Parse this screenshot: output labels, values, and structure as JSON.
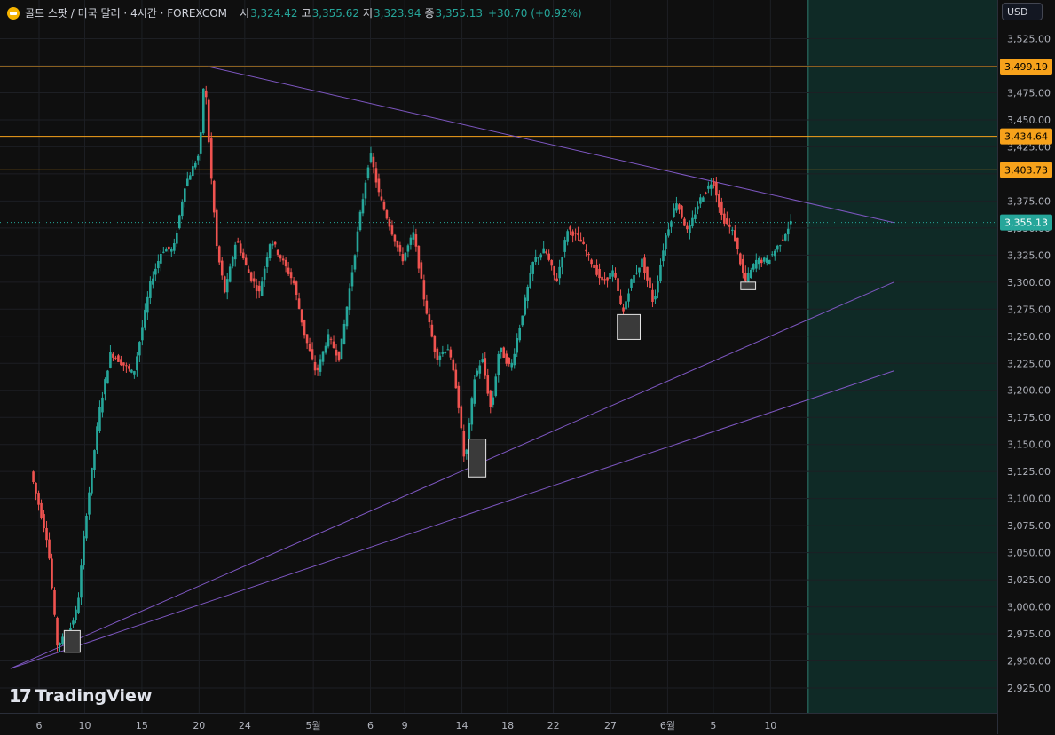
{
  "header": {
    "symbol": "골드 스팟 / 미국 달러 · 4시간 · FOREXCOM",
    "open_label": "시",
    "open": "3,324.42",
    "high_label": "고",
    "high": "3,355.62",
    "low_label": "저",
    "low": "3,323.94",
    "close_label": "종",
    "close": "3,355.13",
    "change": "+30.70 (+0.92%)",
    "currency": "USD"
  },
  "branding": {
    "name": "TradingView"
  },
  "colors": {
    "up": "#26a69a",
    "down": "#ef5350",
    "level": "#f7a21b",
    "trend": "#7e57c2",
    "future_zone": "#0f2a26",
    "current_price": "#26a69a"
  },
  "chart_data": {
    "type": "candlestick",
    "timeframe": "4h",
    "ylim": [
      2910,
      3545
    ],
    "y_ticks": [
      2925,
      2950,
      2975,
      3000,
      3025,
      3050,
      3075,
      3100,
      3125,
      3150,
      3175,
      3200,
      3225,
      3250,
      3275,
      3300,
      3325,
      3350,
      3375,
      3400,
      3425,
      3450,
      3475,
      3500,
      3525
    ],
    "y_tick_labels": [
      "2,925.00",
      "2,950.00",
      "2,975.00",
      "3,000.00",
      "3,025.00",
      "3,050.00",
      "3,075.00",
      "3,100.00",
      "3,125.00",
      "3,150.00",
      "3,175.00",
      "3,200.00",
      "3,225.00",
      "3,250.00",
      "3,275.00",
      "3,300.00",
      "3,325.00",
      "3,350.00",
      "3,375.00",
      "3,400.00",
      "3,425.00",
      "3,450.00",
      "3,475.00",
      "3,500.00",
      "3,525.00"
    ],
    "x_ticks": [
      {
        "label": "6",
        "day": 0
      },
      {
        "label": "10",
        "day": 4
      },
      {
        "label": "15",
        "day": 9
      },
      {
        "label": "20",
        "day": 14
      },
      {
        "label": "24",
        "day": 18
      },
      {
        "label": "5월",
        "day": 24
      },
      {
        "label": "6",
        "day": 29
      },
      {
        "label": "9",
        "day": 32
      },
      {
        "label": "14",
        "day": 37
      },
      {
        "label": "18",
        "day": 41
      },
      {
        "label": "22",
        "day": 45
      },
      {
        "label": "27",
        "day": 50
      },
      {
        "label": "6월",
        "day": 55
      },
      {
        "label": "5",
        "day": 59
      },
      {
        "label": "10",
        "day": 64
      }
    ],
    "price_path": [
      {
        "day": -0.5,
        "p": 3125
      },
      {
        "day": 1,
        "p": 3060
      },
      {
        "day": 1.8,
        "p": 2965
      },
      {
        "day": 2.8,
        "p": 2975
      },
      {
        "day": 3.6,
        "p": 3000
      },
      {
        "day": 4.3,
        "p": 3080
      },
      {
        "day": 5.5,
        "p": 3180
      },
      {
        "day": 6.5,
        "p": 3235
      },
      {
        "day": 7.5,
        "p": 3225
      },
      {
        "day": 8.5,
        "p": 3215
      },
      {
        "day": 10,
        "p": 3300
      },
      {
        "day": 11,
        "p": 3330
      },
      {
        "day": 12,
        "p": 3330
      },
      {
        "day": 13,
        "p": 3390
      },
      {
        "day": 14.3,
        "p": 3420
      },
      {
        "day": 14.7,
        "p": 3495
      },
      {
        "day": 15.2,
        "p": 3410
      },
      {
        "day": 15.8,
        "p": 3330
      },
      {
        "day": 16.5,
        "p": 3290
      },
      {
        "day": 17.5,
        "p": 3340
      },
      {
        "day": 18.5,
        "p": 3310
      },
      {
        "day": 19.5,
        "p": 3290
      },
      {
        "day": 20.5,
        "p": 3340
      },
      {
        "day": 21.5,
        "p": 3320
      },
      {
        "day": 22.5,
        "p": 3300
      },
      {
        "day": 23.5,
        "p": 3250
      },
      {
        "day": 24.5,
        "p": 3215
      },
      {
        "day": 25.5,
        "p": 3250
      },
      {
        "day": 26.5,
        "p": 3230
      },
      {
        "day": 27.5,
        "p": 3300
      },
      {
        "day": 28.3,
        "p": 3360
      },
      {
        "day": 29.2,
        "p": 3420
      },
      {
        "day": 30,
        "p": 3380
      },
      {
        "day": 31,
        "p": 3350
      },
      {
        "day": 32,
        "p": 3320
      },
      {
        "day": 33,
        "p": 3345
      },
      {
        "day": 34,
        "p": 3280
      },
      {
        "day": 35,
        "p": 3230
      },
      {
        "day": 36,
        "p": 3240
      },
      {
        "day": 36.8,
        "p": 3200
      },
      {
        "day": 37.5,
        "p": 3130
      },
      {
        "day": 38.3,
        "p": 3210
      },
      {
        "day": 39,
        "p": 3230
      },
      {
        "day": 39.8,
        "p": 3180
      },
      {
        "day": 40.5,
        "p": 3240
      },
      {
        "day": 41.5,
        "p": 3220
      },
      {
        "day": 42.5,
        "p": 3270
      },
      {
        "day": 43.5,
        "p": 3320
      },
      {
        "day": 44.5,
        "p": 3330
      },
      {
        "day": 45.5,
        "p": 3300
      },
      {
        "day": 46.5,
        "p": 3350
      },
      {
        "day": 47.5,
        "p": 3340
      },
      {
        "day": 48.5,
        "p": 3320
      },
      {
        "day": 49.5,
        "p": 3300
      },
      {
        "day": 50.5,
        "p": 3310
      },
      {
        "day": 51.3,
        "p": 3270
      },
      {
        "day": 52,
        "p": 3300
      },
      {
        "day": 53,
        "p": 3320
      },
      {
        "day": 54,
        "p": 3280
      },
      {
        "day": 55,
        "p": 3340
      },
      {
        "day": 56,
        "p": 3375
      },
      {
        "day": 57,
        "p": 3345
      },
      {
        "day": 58,
        "p": 3375
      },
      {
        "day": 59.2,
        "p": 3395
      },
      {
        "day": 60,
        "p": 3360
      },
      {
        "day": 61,
        "p": 3345
      },
      {
        "day": 62,
        "p": 3300
      },
      {
        "day": 63,
        "p": 3320
      },
      {
        "day": 64,
        "p": 3320
      },
      {
        "day": 65,
        "p": 3335
      },
      {
        "day": 66,
        "p": 3355
      }
    ],
    "horizontal_levels": [
      {
        "label": "3,499.19",
        "value": 3499.19
      },
      {
        "label": "3,434.64",
        "value": 3434.64
      },
      {
        "label": "3,403.73",
        "value": 3403.73
      }
    ],
    "current_price": {
      "label": "3,355.13",
      "value": 3355.13
    },
    "trendlines": [
      {
        "from": {
          "day": 14.8,
          "p": 3499.19
        },
        "to": {
          "day": 74.8,
          "p": 3355
        }
      },
      {
        "from": {
          "day": -2.5,
          "p": 2943
        },
        "to": {
          "day": 74.8,
          "p": 3300
        }
      },
      {
        "from": {
          "day": -2.5,
          "p": 2943
        },
        "to": {
          "day": 74.8,
          "p": 3218
        }
      }
    ],
    "boxes": [
      {
        "day0": 2.2,
        "day1": 3.6,
        "p0": 2958,
        "p1": 2978
      },
      {
        "day0": 37.6,
        "day1": 39.1,
        "p0": 3120,
        "p1": 3155
      },
      {
        "day0": 50.6,
        "day1": 52.6,
        "p0": 3247,
        "p1": 3270
      },
      {
        "day0": 61.4,
        "day1": 62.7,
        "p0": 3293,
        "p1": 3300
      }
    ],
    "future_zone_start_day": 67.3
  }
}
